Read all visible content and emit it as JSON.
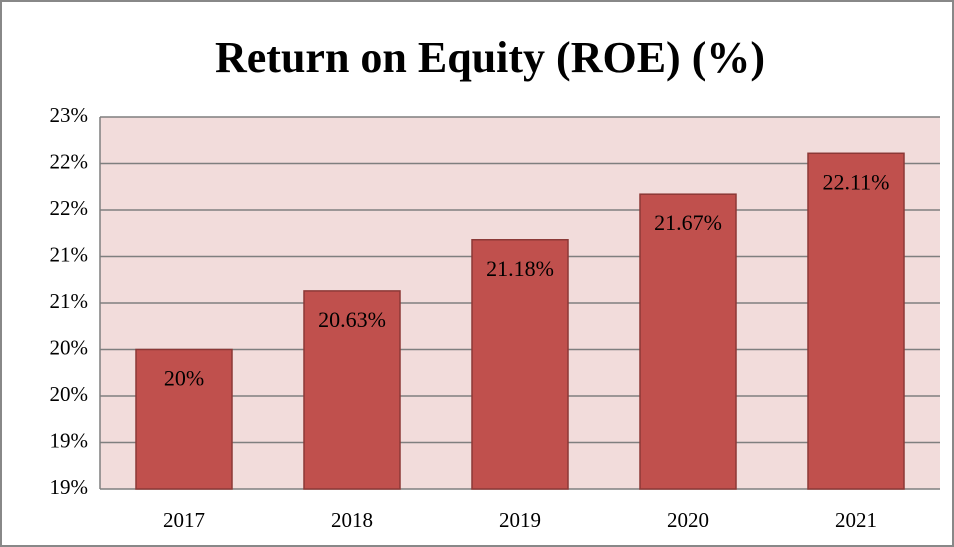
{
  "chart_data": {
    "type": "bar",
    "title": "Return on Equity (ROE) (%)",
    "categories": [
      "2017",
      "2018",
      "2019",
      "2020",
      "2021"
    ],
    "values": [
      20,
      20.63,
      21.18,
      21.67,
      22.11
    ],
    "value_labels": [
      "20%",
      "20.63%",
      "21.18%",
      "21.67%",
      "22.11%"
    ],
    "color": "#c0504d",
    "ylim": [
      18.5,
      22.5
    ],
    "yticks": [
      {
        "value": 18.5,
        "label": "19%"
      },
      {
        "value": 19,
        "label": "19%"
      },
      {
        "value": 19.5,
        "label": "20%"
      },
      {
        "value": 20,
        "label": "20%"
      },
      {
        "value": 20.5,
        "label": "21%"
      },
      {
        "value": 21,
        "label": "21%"
      },
      {
        "value": 21.5,
        "label": "22%"
      },
      {
        "value": 22,
        "label": "22%"
      },
      {
        "value": 22.5,
        "label": "23%"
      }
    ],
    "grid": true
  }
}
